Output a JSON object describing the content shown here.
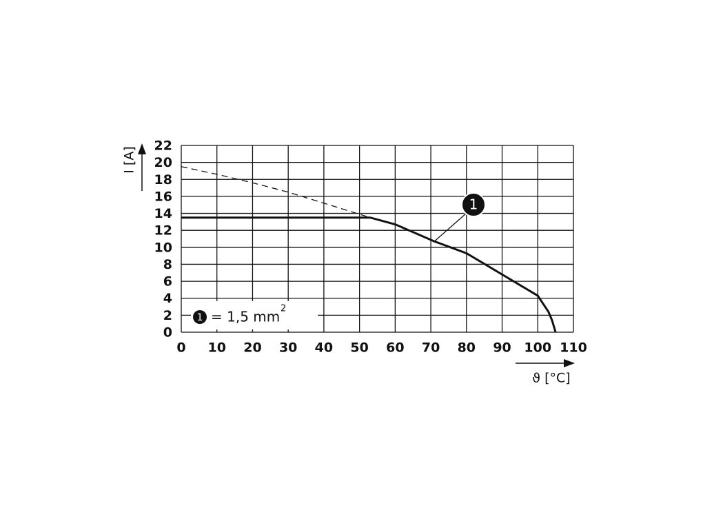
{
  "chart_data": {
    "type": "line",
    "xlabel": "ϑ [°C]",
    "ylabel": "I [A]",
    "xlim": [
      0,
      110
    ],
    "ylim": [
      0,
      22
    ],
    "xticks": [
      0,
      10,
      20,
      30,
      40,
      50,
      60,
      70,
      80,
      90,
      100,
      110
    ],
    "yticks": [
      0,
      2,
      4,
      6,
      8,
      10,
      12,
      14,
      16,
      18,
      20,
      22
    ],
    "grid": true,
    "series": [
      {
        "color": "#111111",
        "style": "solid",
        "x": [
          0,
          53,
          60,
          71,
          80,
          90,
          100,
          103,
          104,
          105
        ],
        "values": [
          13.5,
          13.5,
          12.7,
          10.7,
          9.3,
          6.8,
          4.3,
          2.4,
          1.4,
          0
        ]
      },
      {
        "color": "#111111",
        "style": "dashed",
        "x": [
          0,
          10,
          20,
          30,
          40,
          53
        ],
        "values": [
          19.5,
          18.6,
          17.6,
          16.5,
          15.2,
          13.5
        ]
      }
    ],
    "legend": {
      "marker": "1",
      "text": "= 1,5 mm",
      "sup": "2"
    },
    "callout": {
      "label": "1"
    }
  }
}
